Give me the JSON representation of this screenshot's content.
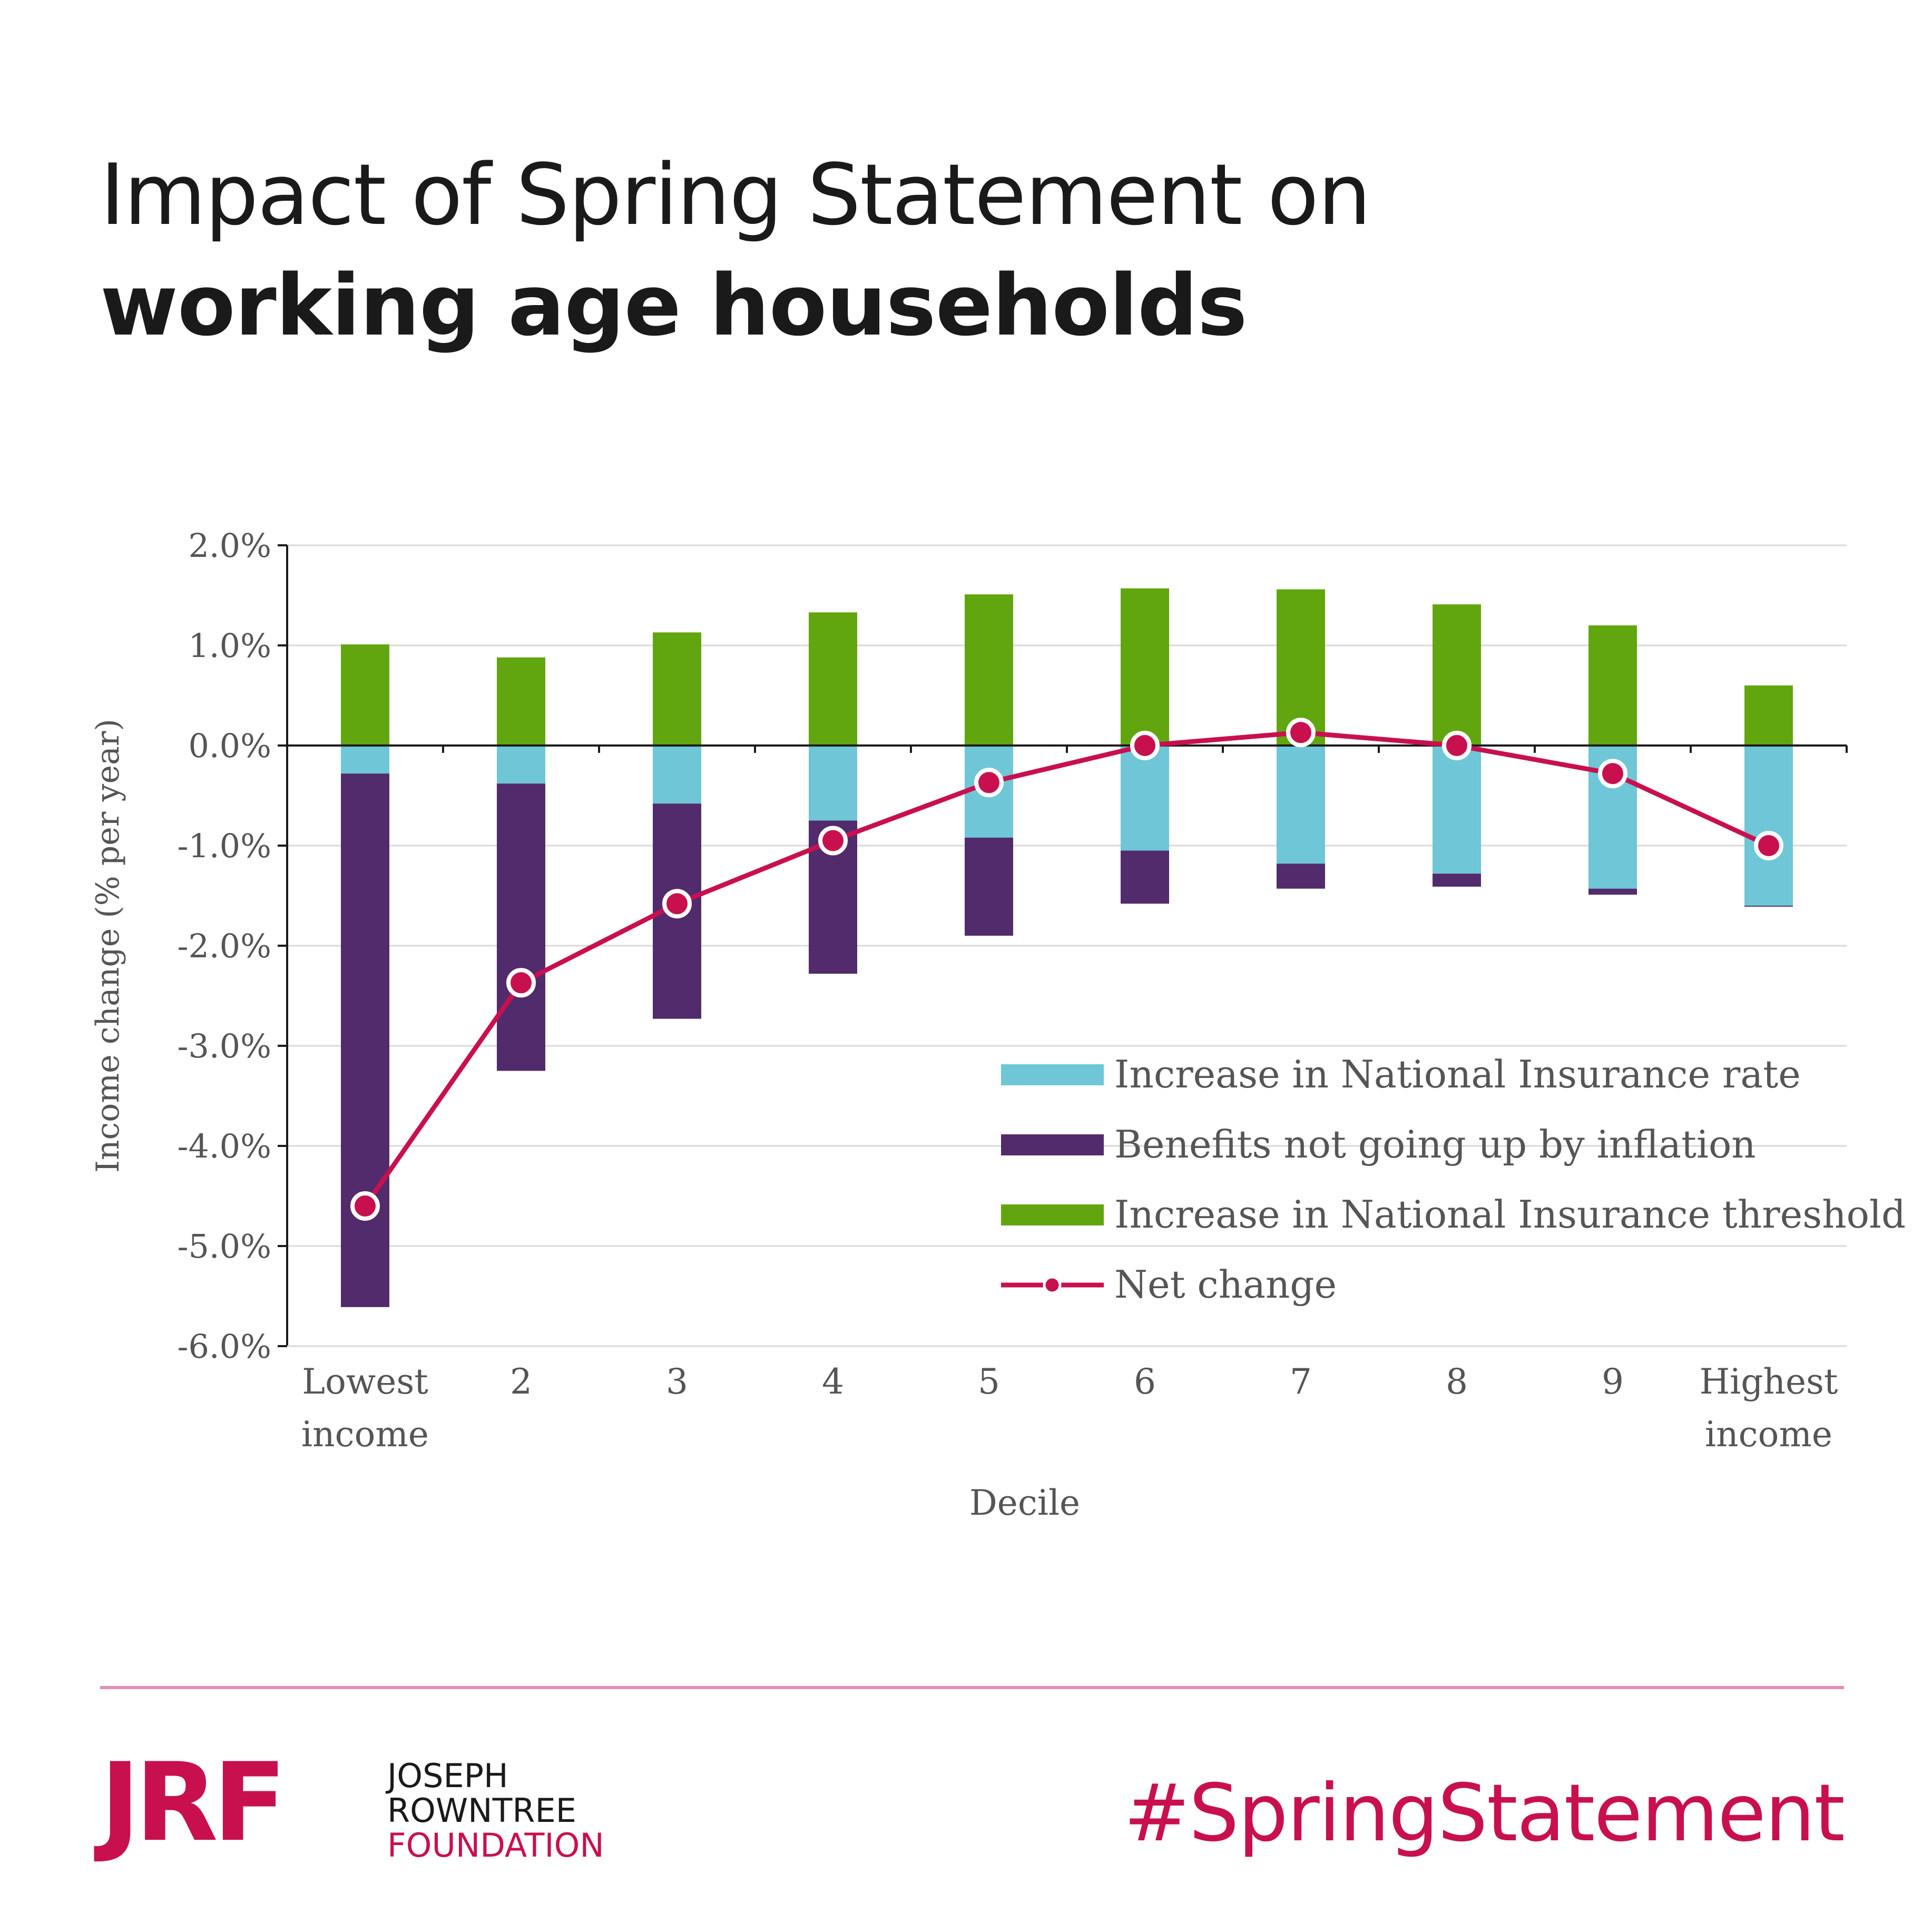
{
  "title": {
    "line1": "Impact of Spring Statement on",
    "line2": "working age households"
  },
  "chart_data": {
    "type": "bar",
    "stacked": true,
    "xlabel": "Decile",
    "ylabel": "Income change (% per year)",
    "ylim": [
      -6,
      2
    ],
    "yticks": [
      2,
      1,
      0,
      -1,
      -2,
      -3,
      -4,
      -5,
      -6
    ],
    "ytick_labels": [
      "2.0%",
      "1.0%",
      "0.0%",
      "-1.0%",
      "-2.0%",
      "-3.0%",
      "-4.0%",
      "-5.0%",
      "-6.0%"
    ],
    "categories": [
      [
        "Lowest",
        "income"
      ],
      [
        "2"
      ],
      [
        "3"
      ],
      [
        "4"
      ],
      [
        "5"
      ],
      [
        "6"
      ],
      [
        "7"
      ],
      [
        "8"
      ],
      [
        "9"
      ],
      [
        "Highest",
        "income"
      ]
    ],
    "series": [
      {
        "name": "Increase in National Insurance rate",
        "kind": "bar",
        "color": "#6ec6d6",
        "values": [
          -0.28,
          -0.38,
          -0.58,
          -0.75,
          -0.92,
          -1.05,
          -1.18,
          -1.28,
          -1.43,
          -1.6
        ]
      },
      {
        "name": "Benefits not going up by inflation",
        "kind": "bar",
        "color": "#512b6b",
        "values": [
          -5.33,
          -2.87,
          -2.15,
          -1.53,
          -0.98,
          -0.53,
          -0.25,
          -0.13,
          -0.06,
          -0.01
        ]
      },
      {
        "name": "Increase in National Insurance threshold",
        "kind": "bar",
        "color": "#62a60f",
        "values": [
          1.01,
          0.88,
          1.13,
          1.33,
          1.51,
          1.57,
          1.56,
          1.41,
          1.2,
          0.6
        ]
      },
      {
        "name": "Net change",
        "kind": "line",
        "color": "#c8104f",
        "values": [
          -4.6,
          -2.37,
          -1.58,
          -0.95,
          -0.37,
          0.0,
          0.13,
          0.0,
          -0.28,
          -1.0
        ]
      }
    ],
    "legend_position": "bottom-right",
    "grid": true
  },
  "footer": {
    "logo_mark": "JRF",
    "logo_line1": "JOSEPH",
    "logo_line2": "ROWNTREE",
    "logo_line3": "FOUNDATION",
    "hashtag": "#SpringStatement"
  }
}
